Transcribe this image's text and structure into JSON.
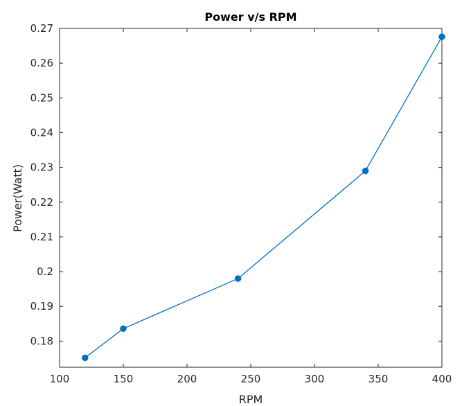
{
  "chart_data": {
    "type": "line",
    "title": "Power v/s RPM",
    "xlabel": "RPM",
    "ylabel": "Power(Watt)",
    "xlim": [
      100,
      400
    ],
    "ylim": [
      0.1725,
      0.27
    ],
    "xticks": [
      100,
      150,
      200,
      250,
      300,
      350,
      400
    ],
    "yticks": [
      0.18,
      0.19,
      0.2,
      0.21,
      0.22,
      0.23,
      0.24,
      0.25,
      0.26,
      0.27
    ],
    "grid": false,
    "series": [
      {
        "x": [
          120,
          150,
          240,
          340,
          400
        ],
        "y": [
          0.1752,
          0.1836,
          0.198,
          0.229,
          0.2676
        ],
        "color": "#0072BD",
        "marker": "circle"
      }
    ]
  }
}
